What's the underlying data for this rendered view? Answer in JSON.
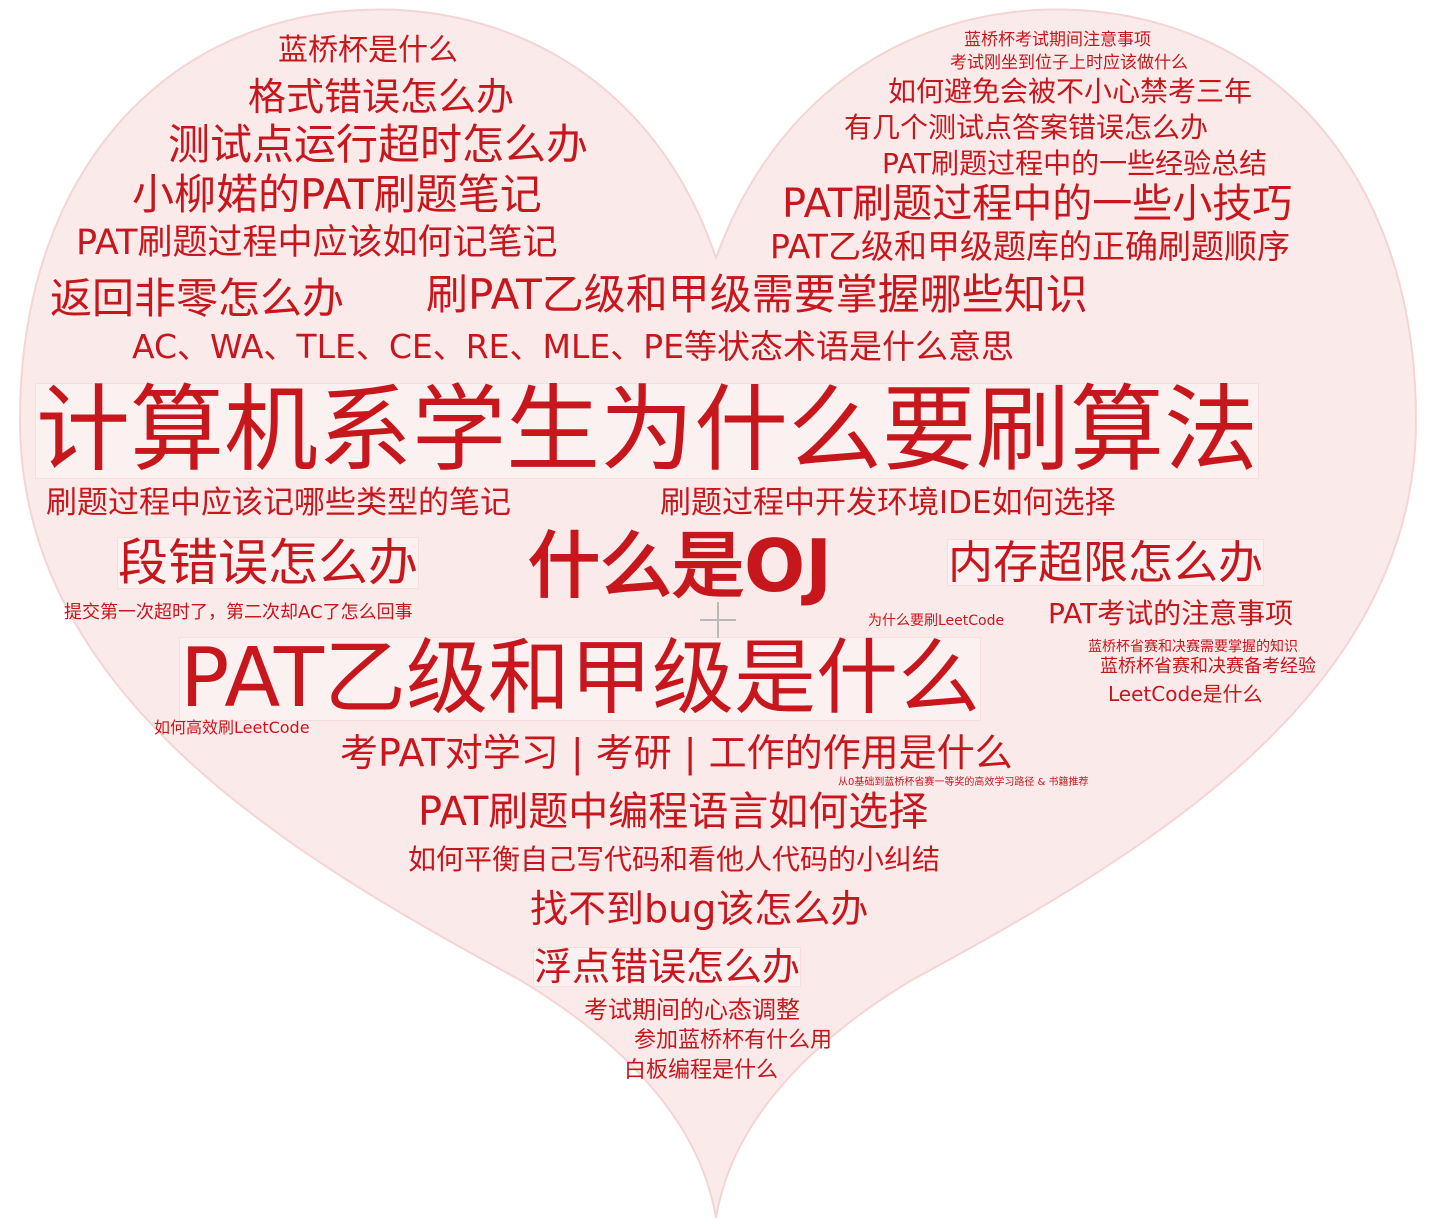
{
  "colors": {
    "text": "#c8161d",
    "heart_fill": "#fbeaea",
    "heart_stroke": "#f4d5d5"
  },
  "words": [
    {
      "id": "w01",
      "text": "蓝桥杯是什么"
    },
    {
      "id": "w02",
      "text": "格式错误怎么办"
    },
    {
      "id": "w03",
      "text": "测试点运行超时怎么办"
    },
    {
      "id": "w04",
      "text": "小柳婼的PAT刷题笔记"
    },
    {
      "id": "w05",
      "text": "PAT刷题过程中应该如何记笔记"
    },
    {
      "id": "w06",
      "text": "返回非零怎么办"
    },
    {
      "id": "w07",
      "text": "刷PAT乙级和甲级需要掌握哪些知识"
    },
    {
      "id": "w08",
      "text": "AC、WA、TLE、CE、RE、MLE、PE等状态术语是什么意思"
    },
    {
      "id": "w09",
      "text": "计算机系学生为什么要刷算法"
    },
    {
      "id": "w10",
      "text": "刷题过程中应该记哪些类型的笔记"
    },
    {
      "id": "w11",
      "text": "刷题过程中开发环境IDE如何选择"
    },
    {
      "id": "w12",
      "text": "段错误怎么办"
    },
    {
      "id": "w13",
      "text": "什么是OJ"
    },
    {
      "id": "w14",
      "text": "内存超限怎么办"
    },
    {
      "id": "w15",
      "text": "提交第一次超时了，第二次却AC了怎么回事"
    },
    {
      "id": "w16",
      "text": "为什么要刷LeetCode"
    },
    {
      "id": "w17",
      "text": "PAT考试的注意事项"
    },
    {
      "id": "w18",
      "text": "蓝桥杯省赛和决赛需要掌握的知识"
    },
    {
      "id": "w19",
      "text": "蓝桥杯省赛和决赛备考经验"
    },
    {
      "id": "w20",
      "text": "LeetCode是什么"
    },
    {
      "id": "w21",
      "text": "PAT乙级和甲级是什么"
    },
    {
      "id": "w22",
      "text": "如何高效刷LeetCode"
    },
    {
      "id": "w23",
      "text": "考PAT对学习 | 考研 | 工作的作用是什么"
    },
    {
      "id": "w24",
      "text": "从0基础到蓝桥杯省赛一等奖的高效学习路径 & 书籍推荐"
    },
    {
      "id": "w25",
      "text": "PAT刷题中编程语言如何选择"
    },
    {
      "id": "w26",
      "text": "如何平衡自己写代码和看他人代码的小纠结"
    },
    {
      "id": "w27",
      "text": "找不到bug该怎么办"
    },
    {
      "id": "w28",
      "text": "浮点错误怎么办"
    },
    {
      "id": "w29",
      "text": "考试期间的心态调整"
    },
    {
      "id": "w30",
      "text": "参加蓝桥杯有什么用"
    },
    {
      "id": "w31",
      "text": "白板编程是什么"
    },
    {
      "id": "w32",
      "text": "蓝桥杯考试期间注意事项"
    },
    {
      "id": "w33",
      "text": "考试刚坐到位子上时应该做什么"
    },
    {
      "id": "w34",
      "text": "如何避免会被不小心禁考三年"
    },
    {
      "id": "w35",
      "text": "有几个测试点答案错误怎么办"
    },
    {
      "id": "w36",
      "text": "PAT刷题过程中的一些经验总结"
    },
    {
      "id": "w37",
      "text": "PAT刷题过程中的一些小技巧"
    },
    {
      "id": "w38",
      "text": "PAT乙级和甲级题库的正确刷题顺序"
    }
  ]
}
